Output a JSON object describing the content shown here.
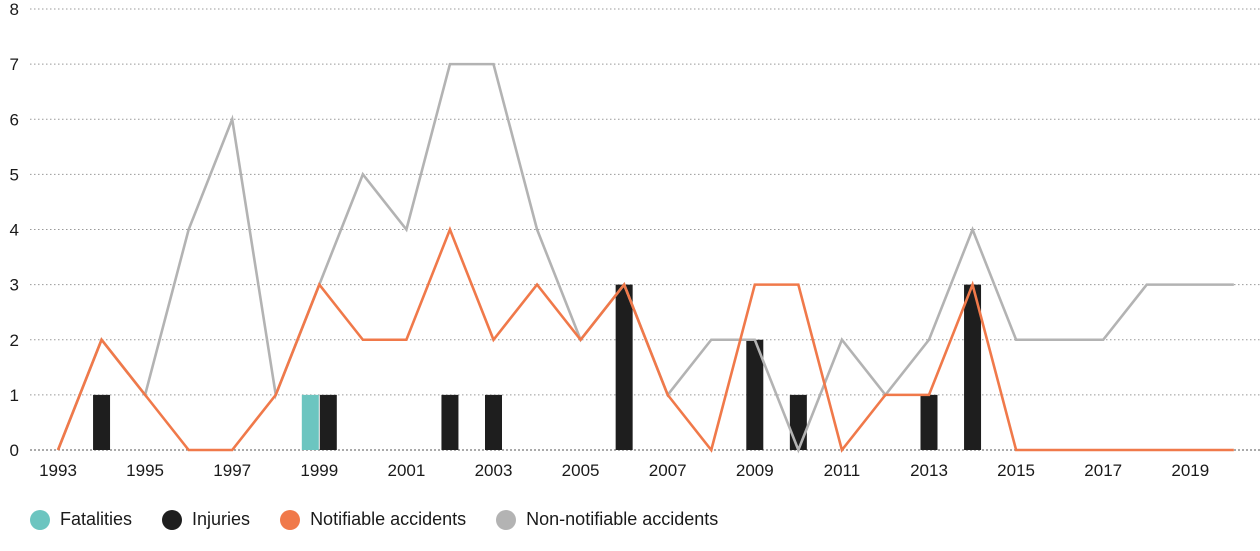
{
  "chart_data": {
    "type": "line",
    "x": [
      1993,
      1994,
      1995,
      1996,
      1997,
      1998,
      1999,
      2000,
      2001,
      2002,
      2003,
      2004,
      2005,
      2006,
      2007,
      2008,
      2009,
      2010,
      2011,
      2012,
      2013,
      2014,
      2015,
      2016,
      2017,
      2018,
      2019,
      2020
    ],
    "xticks": [
      "1993",
      "1995",
      "1997",
      "1999",
      "2001",
      "2003",
      "2005",
      "2007",
      "2009",
      "2011",
      "2013",
      "2015",
      "2017",
      "2019"
    ],
    "yticks": [
      "0",
      "1",
      "2",
      "3",
      "4",
      "5",
      "6",
      "7",
      "8"
    ],
    "ylim": [
      0,
      8
    ],
    "grid": true,
    "legend_position": "bottom-left",
    "series": [
      {
        "name": "Fatalities",
        "type": "bar",
        "color": "#6cc5c0",
        "values": [
          0,
          0,
          0,
          0,
          0,
          0,
          1,
          0,
          0,
          0,
          0,
          0,
          0,
          0,
          0,
          0,
          0,
          0,
          0,
          0,
          0,
          0,
          0,
          0,
          0,
          0,
          0,
          0
        ]
      },
      {
        "name": "Injuries",
        "type": "bar",
        "color": "#1e1e1e",
        "values": [
          0,
          1,
          0,
          0,
          0,
          0,
          1,
          0,
          0,
          1,
          1,
          0,
          0,
          3,
          0,
          0,
          2,
          1,
          0,
          0,
          1,
          3,
          0,
          0,
          0,
          0,
          0,
          0
        ]
      },
      {
        "name": "Notifiable accidents",
        "type": "line",
        "color": "#f0794a",
        "values": [
          0,
          2,
          1,
          0,
          0,
          1,
          3,
          2,
          2,
          4,
          2,
          3,
          2,
          3,
          1,
          0,
          3,
          3,
          0,
          1,
          1,
          3,
          0,
          0,
          0,
          0,
          0,
          0
        ]
      },
      {
        "name": "Non-notifiable accidents",
        "type": "line",
        "color": "#b3b3b3",
        "values": [
          0,
          2,
          1,
          4,
          6,
          1,
          3,
          5,
          4,
          7,
          7,
          4,
          2,
          3,
          1,
          2,
          2,
          0,
          2,
          1,
          2,
          4,
          2,
          2,
          2,
          3,
          3,
          3
        ]
      }
    ]
  }
}
